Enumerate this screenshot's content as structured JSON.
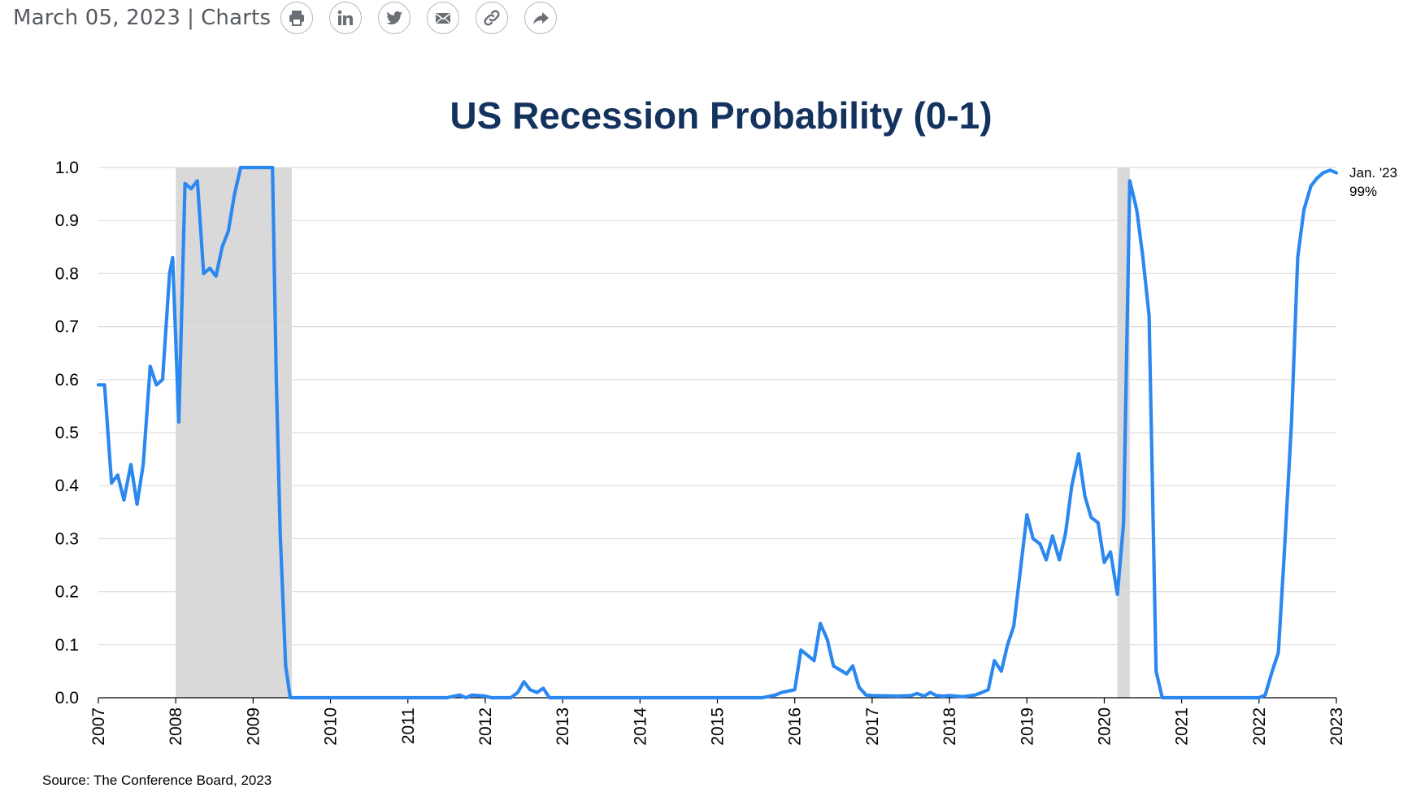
{
  "header": {
    "date": "March 05, 2023",
    "separator": "|",
    "category": "Charts",
    "share_icons": [
      "print-icon",
      "linkedin-icon",
      "twitter-icon",
      "email-icon",
      "link-icon",
      "share-icon"
    ]
  },
  "chart_data": {
    "type": "line",
    "title": "US Recession Probability (0-1)",
    "xlabel": "",
    "ylabel": "",
    "xlim": [
      2007.0,
      2023.0
    ],
    "ylim": [
      0,
      1.0
    ],
    "y_ticks": [
      "0.0",
      "0.1",
      "0.2",
      "0.3",
      "0.4",
      "0.5",
      "0.6",
      "0.7",
      "0.8",
      "0.9",
      "1.0"
    ],
    "x_ticks": [
      "2007",
      "2008",
      "2009",
      "2010",
      "2011",
      "2012",
      "2013",
      "2014",
      "2015",
      "2016",
      "2017",
      "2018",
      "2019",
      "2020",
      "2021",
      "2022",
      "2023"
    ],
    "grid": true,
    "line_color": "#2b88f0",
    "recession_color": "#d9d9d9",
    "recessions": [
      [
        2008.0,
        2009.5
      ],
      [
        2020.17,
        2020.33
      ]
    ],
    "annotation": {
      "line1": "Jan. '23",
      "line2": "99%"
    },
    "source": "Source: The Conference Board, 2023",
    "series": [
      {
        "x": [
          2007.0,
          2007.08,
          2007.17,
          2007.25,
          2007.33,
          2007.42,
          2007.5,
          2007.58,
          2007.67,
          2007.75,
          2007.83,
          2007.92,
          2007.96,
          2008.04,
          2008.12,
          2008.2,
          2008.28,
          2008.36,
          2008.44,
          2008.52,
          2008.6,
          2008.68,
          2008.76,
          2008.84,
          2008.92,
          2009.0,
          2009.25,
          2009.3,
          2009.35,
          2009.42,
          2009.48,
          2009.6,
          2010.0,
          2011.0,
          2011.5,
          2011.67,
          2011.75,
          2011.83,
          2011.92,
          2012.0,
          2012.08,
          2012.33,
          2012.42,
          2012.5,
          2012.58,
          2012.67,
          2012.75,
          2012.83,
          2012.92,
          2013.0,
          2014.0,
          2015.0,
          2015.5,
          2015.58,
          2015.75,
          2015.83,
          2016.0,
          2016.08,
          2016.25,
          2016.33,
          2016.42,
          2016.5,
          2016.67,
          2016.75,
          2016.83,
          2016.92,
          2017.0,
          2017.33,
          2017.5,
          2017.58,
          2017.67,
          2017.75,
          2017.83,
          2017.92,
          2018.0,
          2018.08,
          2018.17,
          2018.33,
          2018.42,
          2018.5,
          2018.58,
          2018.67,
          2018.75,
          2018.83,
          2019.0,
          2019.08,
          2019.17,
          2019.25,
          2019.33,
          2019.42,
          2019.5,
          2019.58,
          2019.67,
          2019.75,
          2019.83,
          2019.92,
          2020.0,
          2020.08,
          2020.17,
          2020.25,
          2020.33,
          2020.42,
          2020.5,
          2020.58,
          2020.67,
          2020.75,
          2020.83,
          2020.92,
          2021.0,
          2022.0,
          2022.08,
          2022.17,
          2022.25,
          2022.33,
          2022.42,
          2022.5,
          2022.58,
          2022.67,
          2022.75,
          2022.83,
          2022.92,
          2023.0
        ],
        "values": [
          0.59,
          0.59,
          0.405,
          0.42,
          0.373,
          0.44,
          0.365,
          0.44,
          0.625,
          0.59,
          0.6,
          0.8,
          0.83,
          0.52,
          0.97,
          0.96,
          0.975,
          0.8,
          0.81,
          0.795,
          0.85,
          0.88,
          0.95,
          1.0,
          1.0,
          1.0,
          1.0,
          0.6,
          0.31,
          0.06,
          0.0,
          0.0,
          0.0,
          0.0,
          0.0,
          0.005,
          0.0,
          0.005,
          0.004,
          0.003,
          0.0,
          0.0,
          0.01,
          0.03,
          0.015,
          0.01,
          0.018,
          0.0,
          0.0,
          0.0,
          0.0,
          0.0,
          0.0,
          0.0,
          0.005,
          0.01,
          0.015,
          0.09,
          0.07,
          0.14,
          0.11,
          0.06,
          0.045,
          0.06,
          0.02,
          0.005,
          0.004,
          0.003,
          0.004,
          0.008,
          0.003,
          0.01,
          0.004,
          0.003,
          0.004,
          0.003,
          0.002,
          0.005,
          0.01,
          0.015,
          0.07,
          0.05,
          0.1,
          0.135,
          0.345,
          0.3,
          0.29,
          0.26,
          0.305,
          0.26,
          0.31,
          0.4,
          0.46,
          0.38,
          0.34,
          0.33,
          0.255,
          0.275,
          0.195,
          0.33,
          0.975,
          0.92,
          0.83,
          0.72,
          0.05,
          0.0,
          0.0,
          0.0,
          0.0,
          0.0,
          0.005,
          0.05,
          0.085,
          0.28,
          0.52,
          0.83,
          0.92,
          0.965,
          0.98,
          0.99,
          0.995,
          0.99
        ]
      }
    ]
  }
}
